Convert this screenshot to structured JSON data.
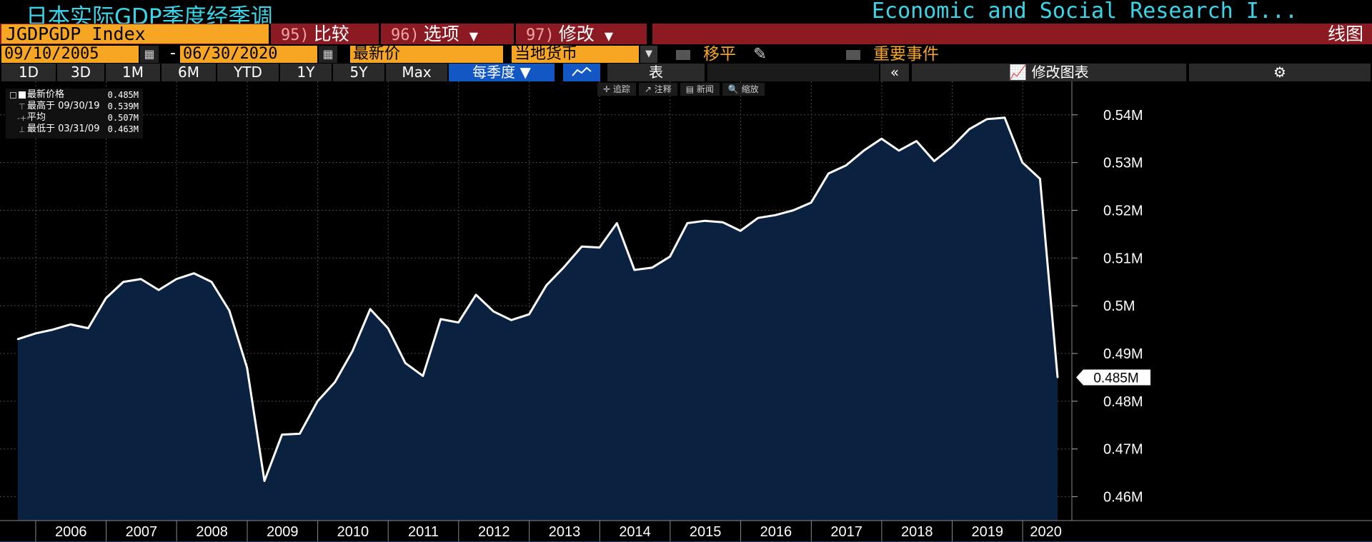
{
  "title": {
    "left": "日本实际GDP季度经季调",
    "right": "Economic and Social Research I..."
  },
  "row2": {
    "ticker": "JGDPGDP Index",
    "tabs": [
      {
        "num": "95)",
        "label": "比较",
        "caret": ""
      },
      {
        "num": "96)",
        "label": "选项",
        "caret": "▼"
      },
      {
        "num": "97)",
        "label": "修改",
        "caret": "▼"
      }
    ],
    "chart_type_label": "线图"
  },
  "row3": {
    "start_date": "09/10/2005",
    "dash": "-",
    "end_date": "06/30/2020",
    "price_field": "最新价",
    "currency": "当地货币",
    "moving_avg_label": "移平",
    "events_label": "重要事件"
  },
  "toolbar": {
    "ranges": [
      "1D",
      "3D",
      "1M",
      "6M",
      "YTD",
      "1Y",
      "5Y",
      "Max"
    ],
    "frequency": "每季度 ▼",
    "table_label": "表",
    "collapse_label": "«",
    "edit_chart_label": "修改图表",
    "gear": "⚙"
  },
  "mini_toolbar": [
    "✛ 追踪",
    "↗ 注释",
    "▤ 新闻",
    "🔍 缩放"
  ],
  "legend": {
    "rows": [
      {
        "label": "最新价格",
        "value": "0.485M"
      },
      {
        "label": "最高于 09/30/19",
        "value": "0.539M"
      },
      {
        "label": "平均",
        "value": "0.507M"
      },
      {
        "label": "最低于 03/31/09",
        "value": "0.463M"
      }
    ]
  },
  "colors": {
    "line": "#ffffff",
    "area": "#0a2240",
    "accent_orange": "#f6a623",
    "title_cyan": "#39d5e8",
    "bar_red": "#8b1a22",
    "active_blue": "#1257c4"
  },
  "chart_data": {
    "type": "area",
    "title": "",
    "xlabel": "",
    "ylabel": "",
    "ylim": [
      0.455,
      0.547
    ],
    "yticks": [
      0.46,
      0.47,
      0.48,
      0.49,
      0.5,
      0.51,
      0.52,
      0.53,
      0.54
    ],
    "ytick_labels": [
      "0.46M",
      "0.47M",
      "0.48M",
      "0.49M",
      "0.5M",
      "0.51M",
      "0.52M",
      "0.53M",
      "0.54M"
    ],
    "x_labels": [
      "2006",
      "2007",
      "2008",
      "2009",
      "2010",
      "2011",
      "2012",
      "2013",
      "2014",
      "2015",
      "2016",
      "2017",
      "2018",
      "2019",
      "2020"
    ],
    "last_value_label": "0.485M",
    "grid": true,
    "series": [
      {
        "x": [
          "2005-09-30",
          "2005-12-31",
          "2006-03-31",
          "2006-06-30",
          "2006-09-30",
          "2006-12-31",
          "2007-03-31",
          "2007-06-30",
          "2007-09-30",
          "2007-12-31",
          "2008-03-31",
          "2008-06-30",
          "2008-09-30",
          "2008-12-31",
          "2009-03-31",
          "2009-06-30",
          "2009-09-30",
          "2009-12-31",
          "2010-03-31",
          "2010-06-30",
          "2010-09-30",
          "2010-12-31",
          "2011-03-31",
          "2011-06-30",
          "2011-09-30",
          "2011-12-31",
          "2012-03-31",
          "2012-06-30",
          "2012-09-30",
          "2012-12-31",
          "2013-03-31",
          "2013-06-30",
          "2013-09-30",
          "2013-12-31",
          "2014-03-31",
          "2014-06-30",
          "2014-09-30",
          "2014-12-31",
          "2015-03-31",
          "2015-06-30",
          "2015-09-30",
          "2015-12-31",
          "2016-03-31",
          "2016-06-30",
          "2016-09-30",
          "2016-12-31",
          "2017-03-31",
          "2017-06-30",
          "2017-09-30",
          "2017-12-31",
          "2018-03-31",
          "2018-06-30",
          "2018-09-30",
          "2018-12-31",
          "2019-03-31",
          "2019-06-30",
          "2019-09-30",
          "2019-12-31",
          "2020-03-31",
          "2020-06-30"
        ],
        "values": [
          0.493,
          0.4942,
          0.495,
          0.4961,
          0.4953,
          0.5016,
          0.505,
          0.5056,
          0.5033,
          0.5056,
          0.5068,
          0.505,
          0.499,
          0.487,
          0.4633,
          0.473,
          0.4732,
          0.48,
          0.484,
          0.4905,
          0.4993,
          0.4953,
          0.488,
          0.4853,
          0.4972,
          0.4965,
          0.5023,
          0.4988,
          0.497,
          0.4982,
          0.5043,
          0.5081,
          0.5124,
          0.5122,
          0.5173,
          0.5075,
          0.508,
          0.5103,
          0.5173,
          0.5178,
          0.5175,
          0.5157,
          0.5184,
          0.519,
          0.52,
          0.5216,
          0.5277,
          0.5294,
          0.5325,
          0.535,
          0.5325,
          0.5345,
          0.5303,
          0.5333,
          0.537,
          0.5391,
          0.5394,
          0.53,
          0.5266,
          0.485
        ]
      }
    ]
  }
}
